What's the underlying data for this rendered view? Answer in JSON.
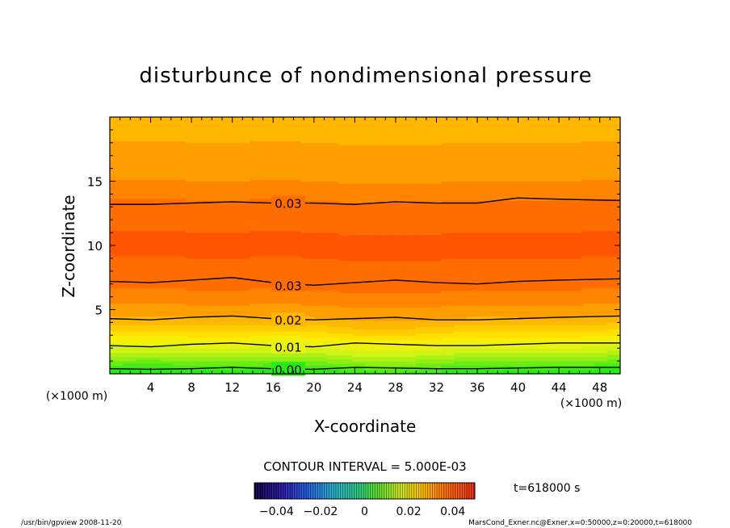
{
  "chart_data": {
    "type": "heatmap",
    "subtype": "filled-contour",
    "title": "disturbunce of nondimensional pressure",
    "xlabel": "X-coordinate",
    "ylabel": "Z-coordinate",
    "x_unit_left": "(×1000 m)",
    "x_unit_right": "(×1000 m)",
    "xlim": [
      0,
      50
    ],
    "ylim": [
      0,
      20
    ],
    "x_ticks": [
      4,
      8,
      12,
      16,
      20,
      24,
      28,
      32,
      36,
      40,
      44,
      48
    ],
    "x_tick_labels": [
      "4",
      "8",
      "12",
      "16",
      "20",
      "24",
      "28",
      "32",
      "36",
      "40",
      "44",
      "48"
    ],
    "y_ticks": [
      5,
      10,
      15
    ],
    "y_tick_labels": [
      "5",
      "10",
      "15"
    ],
    "contour_interval_text": "CONTOUR INTERVAL = 5.000E-03",
    "profile_z": [
      0,
      0.5,
      1,
      1.5,
      2,
      2.5,
      3,
      3.5,
      4,
      4.5,
      5,
      5.5,
      6,
      7,
      8,
      9,
      10,
      11,
      12,
      13,
      14,
      15,
      16,
      17,
      18,
      19,
      20
    ],
    "profile_value": [
      0.0,
      0.004,
      0.008,
      0.012,
      0.015,
      0.018,
      0.021,
      0.024,
      0.026,
      0.028,
      0.029,
      0.0305,
      0.0315,
      0.0335,
      0.0345,
      0.035,
      0.0352,
      0.035,
      0.0345,
      0.0335,
      0.0315,
      0.03,
      0.029,
      0.028,
      0.0275,
      0.027,
      0.0268
    ],
    "contour_lines": [
      {
        "value": 0.03,
        "label": "0.03",
        "z": [
          13.2,
          13.2,
          13.3,
          13.4,
          13.3,
          13.3,
          13.2,
          13.4,
          13.3,
          13.3,
          13.7,
          13.6,
          13.5
        ]
      },
      {
        "value": 0.03,
        "label": "0.03",
        "z": [
          7.2,
          7.1,
          7.3,
          7.5,
          7.1,
          6.9,
          7.1,
          7.3,
          7.1,
          7.0,
          7.2,
          7.3,
          7.4
        ]
      },
      {
        "value": 0.02,
        "label": "0.02",
        "z": [
          4.3,
          4.2,
          4.4,
          4.5,
          4.3,
          4.2,
          4.3,
          4.4,
          4.2,
          4.2,
          4.3,
          4.4,
          4.5
        ]
      },
      {
        "value": 0.01,
        "label": "0.01",
        "z": [
          2.2,
          2.1,
          2.3,
          2.4,
          2.2,
          2.1,
          2.4,
          2.3,
          2.2,
          2.2,
          2.3,
          2.4,
          2.4
        ]
      },
      {
        "value": 0.0,
        "label": "0.00",
        "z": [
          0.4,
          0.35,
          0.4,
          0.5,
          0.4,
          0.35,
          0.5,
          0.45,
          0.4,
          0.4,
          0.45,
          0.5,
          0.5
        ]
      }
    ],
    "contour_x": [
      0,
      4,
      8,
      12,
      16,
      20,
      24,
      28,
      32,
      36,
      40,
      44,
      50
    ],
    "colorbar": {
      "ticks": [
        -0.04,
        -0.02,
        0,
        0.02,
        0.04
      ],
      "tick_labels": [
        "−0.04",
        "−0.02",
        "0",
        "0.02",
        "0.04"
      ],
      "range": [
        -0.05,
        0.05
      ]
    },
    "time_label": "t=618000 s",
    "footer_left": "/usr/bin/gpview   2008-11-20",
    "footer_right": "MarsCond_Exner.nc@Exner,x=0:50000,z=0:20000,t=618000"
  }
}
